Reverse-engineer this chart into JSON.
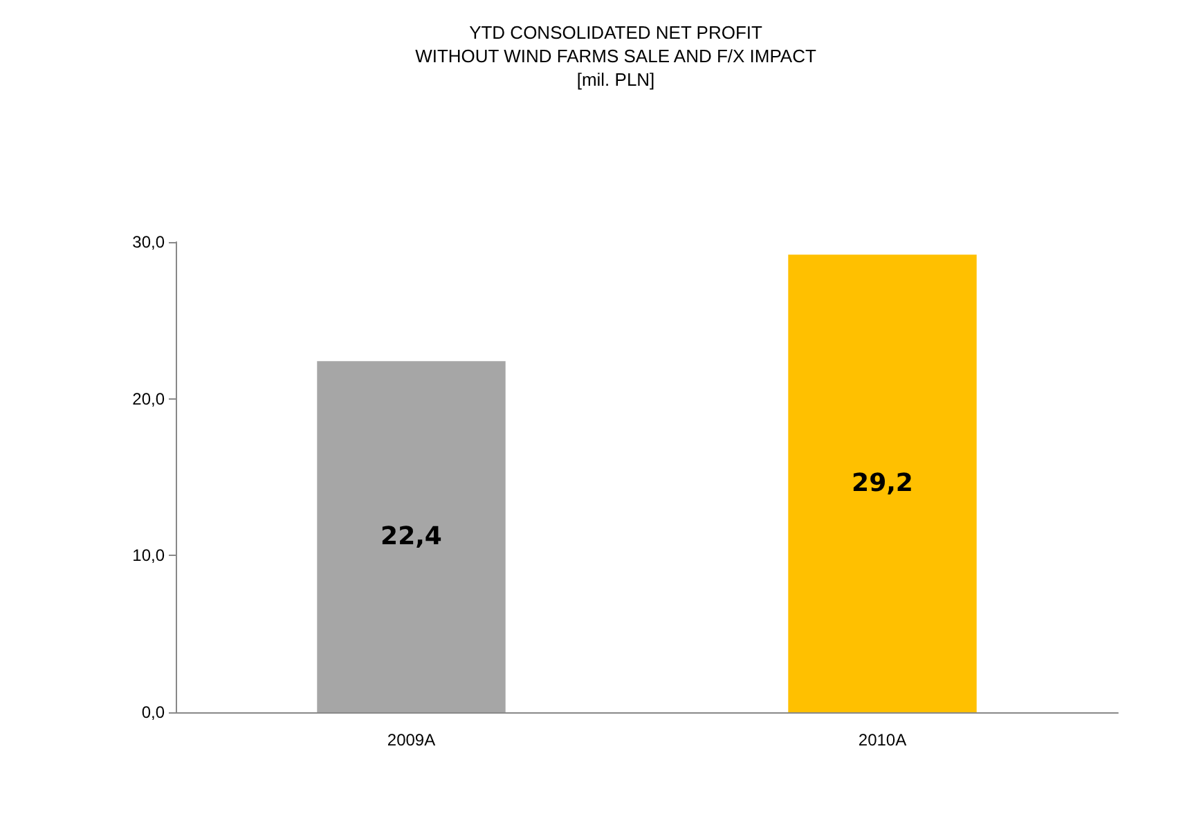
{
  "chart_data": {
    "type": "bar",
    "title": "YTD CONSOLIDATED NET PROFIT\nWITHOUT WIND FARMS SALE AND F/X IMPACT\n[mil. PLN]",
    "categories": [
      "2009A",
      "2010A"
    ],
    "values": [
      22.4,
      29.2
    ],
    "colors": [
      "#a6a6a6",
      "#ffc000"
    ],
    "value_labels": [
      "22,4",
      "29,2"
    ],
    "ylim": [
      0,
      30
    ],
    "yticks": [
      {
        "value": 0,
        "label": "0,0"
      },
      {
        "value": 10,
        "label": "10,0"
      },
      {
        "value": 20,
        "label": "20,0"
      },
      {
        "value": 30,
        "label": "30,0"
      }
    ],
    "grid": false
  }
}
